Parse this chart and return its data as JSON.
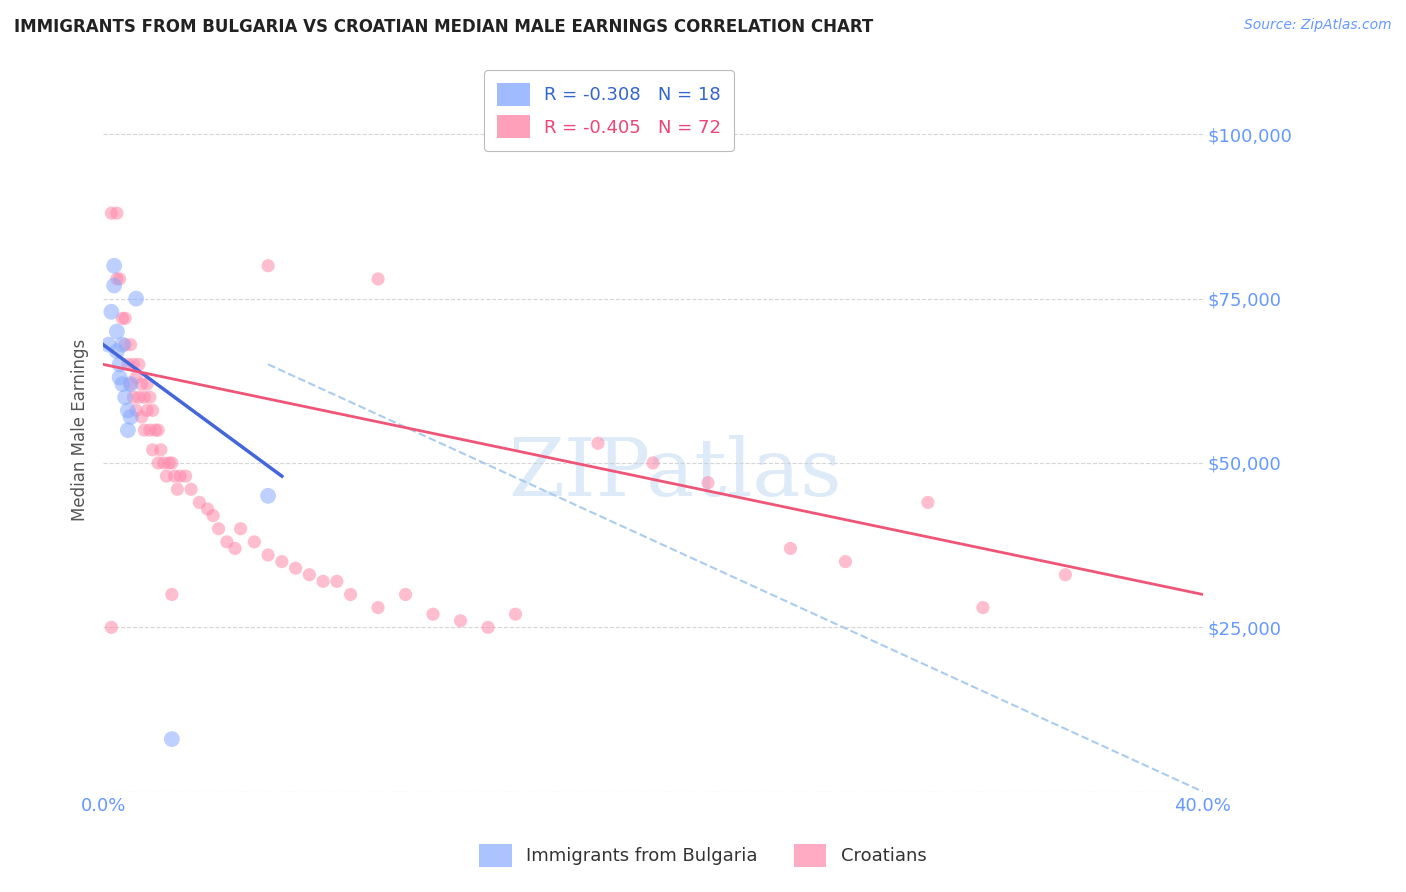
{
  "title": "IMMIGRANTS FROM BULGARIA VS CROATIAN MEDIAN MALE EARNINGS CORRELATION CHART",
  "source": "Source: ZipAtlas.com",
  "ylabel": "Median Male Earnings",
  "xlim": [
    0.0,
    0.4
  ],
  "ylim": [
    0,
    110000
  ],
  "bg_color": "#ffffff",
  "grid_color": "#cccccc",
  "watermark_text": "ZIPatlas",
  "blue_color": "#88aaff",
  "pink_color": "#ff88aa",
  "blue_line_color": "#4466dd",
  "pink_line_color": "#ee5577",
  "dashed_line_color": "#aaccee",
  "title_color": "#222222",
  "axis_tick_color": "#6699ff",
  "source_color": "#6699ff",
  "legend1_text": "R = -0.308   N = 18",
  "legend2_text": "R = -0.405   N = 72",
  "legend1_color": "#3366cc",
  "legend2_color": "#ee4477",
  "blue_line_x": [
    0.0,
    0.065
  ],
  "blue_line_y": [
    68000,
    48000
  ],
  "pink_line_x": [
    0.0,
    0.4
  ],
  "pink_line_y": [
    65000,
    30000
  ],
  "dash_line_x": [
    0.06,
    0.4
  ],
  "dash_line_y": [
    65000,
    0
  ],
  "bulgaria_points": [
    [
      0.002,
      68000
    ],
    [
      0.003,
      73000
    ],
    [
      0.004,
      80000
    ],
    [
      0.004,
      77000
    ],
    [
      0.005,
      70000
    ],
    [
      0.005,
      67000
    ],
    [
      0.006,
      65000
    ],
    [
      0.006,
      63000
    ],
    [
      0.007,
      68000
    ],
    [
      0.007,
      62000
    ],
    [
      0.008,
      60000
    ],
    [
      0.009,
      58000
    ],
    [
      0.009,
      55000
    ],
    [
      0.01,
      62000
    ],
    [
      0.01,
      57000
    ],
    [
      0.012,
      75000
    ],
    [
      0.025,
      8000
    ],
    [
      0.06,
      45000
    ]
  ],
  "croatian_points": [
    [
      0.003,
      88000
    ],
    [
      0.005,
      88000
    ],
    [
      0.005,
      78000
    ],
    [
      0.006,
      78000
    ],
    [
      0.007,
      72000
    ],
    [
      0.008,
      72000
    ],
    [
      0.008,
      68000
    ],
    [
      0.009,
      65000
    ],
    [
      0.01,
      68000
    ],
    [
      0.01,
      62000
    ],
    [
      0.011,
      65000
    ],
    [
      0.011,
      60000
    ],
    [
      0.012,
      63000
    ],
    [
      0.012,
      58000
    ],
    [
      0.013,
      65000
    ],
    [
      0.013,
      60000
    ],
    [
      0.014,
      62000
    ],
    [
      0.014,
      57000
    ],
    [
      0.015,
      60000
    ],
    [
      0.015,
      55000
    ],
    [
      0.016,
      62000
    ],
    [
      0.016,
      58000
    ],
    [
      0.017,
      60000
    ],
    [
      0.017,
      55000
    ],
    [
      0.018,
      58000
    ],
    [
      0.018,
      52000
    ],
    [
      0.019,
      55000
    ],
    [
      0.02,
      55000
    ],
    [
      0.02,
      50000
    ],
    [
      0.021,
      52000
    ],
    [
      0.022,
      50000
    ],
    [
      0.023,
      48000
    ],
    [
      0.024,
      50000
    ],
    [
      0.025,
      50000
    ],
    [
      0.026,
      48000
    ],
    [
      0.027,
      46000
    ],
    [
      0.028,
      48000
    ],
    [
      0.03,
      48000
    ],
    [
      0.032,
      46000
    ],
    [
      0.035,
      44000
    ],
    [
      0.038,
      43000
    ],
    [
      0.04,
      42000
    ],
    [
      0.042,
      40000
    ],
    [
      0.045,
      38000
    ],
    [
      0.048,
      37000
    ],
    [
      0.05,
      40000
    ],
    [
      0.055,
      38000
    ],
    [
      0.06,
      36000
    ],
    [
      0.065,
      35000
    ],
    [
      0.07,
      34000
    ],
    [
      0.075,
      33000
    ],
    [
      0.08,
      32000
    ],
    [
      0.085,
      32000
    ],
    [
      0.09,
      30000
    ],
    [
      0.1,
      28000
    ],
    [
      0.11,
      30000
    ],
    [
      0.12,
      27000
    ],
    [
      0.13,
      26000
    ],
    [
      0.14,
      25000
    ],
    [
      0.15,
      27000
    ],
    [
      0.06,
      80000
    ],
    [
      0.1,
      78000
    ],
    [
      0.18,
      53000
    ],
    [
      0.2,
      50000
    ],
    [
      0.22,
      47000
    ],
    [
      0.25,
      37000
    ],
    [
      0.27,
      35000
    ],
    [
      0.3,
      44000
    ],
    [
      0.32,
      28000
    ],
    [
      0.35,
      33000
    ],
    [
      0.003,
      25000
    ],
    [
      0.025,
      30000
    ]
  ],
  "marker_size_bulgaria": 130,
  "marker_size_croatian": 90,
  "marker_alpha": 0.55
}
